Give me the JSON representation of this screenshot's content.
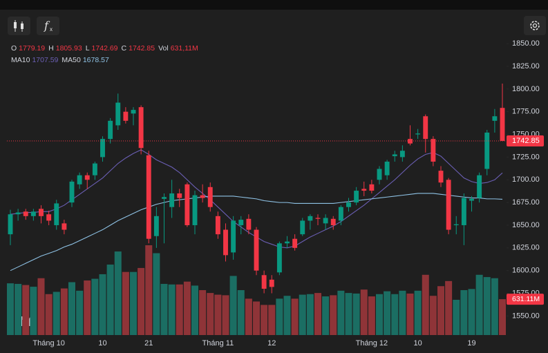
{
  "chart_data": {
    "type": "candlestick",
    "up_color": "#089981",
    "down_color": "#f23645",
    "volume_up_color": "#1b6e63",
    "volume_down_color": "#8f3438",
    "categories": [
      null,
      null,
      null,
      null,
      null,
      "Tháng 10",
      null,
      null,
      null,
      null,
      null,
      null,
      "10",
      null,
      null,
      null,
      null,
      null,
      "21",
      null,
      null,
      null,
      null,
      null,
      null,
      null,
      null,
      "Tháng 11",
      null,
      null,
      null,
      null,
      null,
      null,
      "12",
      null,
      null,
      null,
      null,
      null,
      null,
      null,
      null,
      null,
      null,
      null,
      null,
      "Tháng 12",
      null,
      null,
      null,
      null,
      null,
      "10",
      null,
      null,
      null,
      null,
      null,
      null,
      "19",
      null,
      null,
      null,
      null
    ],
    "open": [
      1640,
      1662,
      1665,
      1660,
      1668,
      1662,
      1650,
      1652,
      1675,
      1695,
      1705,
      1705,
      1725,
      1745,
      1760,
      1775,
      1773,
      1780,
      1727,
      1638,
      1679,
      1670,
      1685,
      1695,
      1650,
      1683,
      1692,
      1660,
      1645,
      1620,
      1650,
      1657,
      1645,
      1595,
      1590,
      1598,
      1630,
      1635,
      1640,
      1655,
      1658,
      1652,
      1657,
      1655,
      1670,
      1675,
      1690,
      1695,
      1700,
      1705,
      1726,
      1725,
      1745,
      1750,
      1770,
      1745,
      1710,
      1700,
      1650,
      1650,
      1677,
      1680,
      1712,
      1765,
      1779.19
    ],
    "high": [
      1667,
      1668,
      1668,
      1668,
      1672,
      1666,
      1678,
      1656,
      1700,
      1708,
      1708,
      1720,
      1748,
      1768,
      1795,
      1780,
      1780,
      1782,
      1732,
      1670,
      1685,
      1700,
      1690,
      1697,
      1688,
      1695,
      1697,
      1665,
      1652,
      1660,
      1660,
      1662,
      1648,
      1600,
      1595,
      1632,
      1638,
      1640,
      1658,
      1662,
      1662,
      1662,
      1660,
      1672,
      1680,
      1692,
      1698,
      1700,
      1715,
      1722,
      1732,
      1738,
      1760,
      1756,
      1772,
      1748,
      1715,
      1702,
      1660,
      1685,
      1682,
      1708,
      1755,
      1778,
      1805.93
    ],
    "low": [
      1628,
      1655,
      1656,
      1655,
      1652,
      1650,
      1645,
      1640,
      1670,
      1690,
      1690,
      1700,
      1720,
      1740,
      1755,
      1762,
      1760,
      1728,
      1630,
      1625,
      1630,
      1658,
      1670,
      1648,
      1640,
      1675,
      1665,
      1635,
      1610,
      1612,
      1640,
      1640,
      1595,
      1575,
      1575,
      1595,
      1625,
      1622,
      1638,
      1645,
      1650,
      1645,
      1645,
      1650,
      1665,
      1672,
      1682,
      1685,
      1695,
      1700,
      1720,
      1720,
      1738,
      1745,
      1730,
      1715,
      1692,
      1640,
      1640,
      1628,
      1665,
      1675,
      1705,
      1752,
      1742.69
    ],
    "close": [
      1662,
      1664,
      1660,
      1665,
      1660,
      1655,
      1674,
      1645,
      1698,
      1705,
      1700,
      1718,
      1745,
      1765,
      1785,
      1765,
      1777,
      1735,
      1635,
      1660,
      1681,
      1685,
      1680,
      1650,
      1683,
      1680,
      1670,
      1640,
      1617,
      1655,
      1656,
      1645,
      1600,
      1580,
      1582,
      1630,
      1632,
      1625,
      1655,
      1660,
      1657,
      1658,
      1650,
      1670,
      1675,
      1688,
      1688,
      1688,
      1712,
      1720,
      1728,
      1732,
      1740,
      1751,
      1745,
      1720,
      1697,
      1645,
      1651,
      1680,
      1679,
      1705,
      1752,
      1770,
      1742.85
    ],
    "volume": {
      "values": [
        910,
        900,
        880,
        850,
        1000,
        720,
        760,
        820,
        930,
        780,
        960,
        990,
        1070,
        1240,
        1470,
        1110,
        1110,
        1180,
        1580,
        1440,
        900,
        890,
        890,
        940,
        870,
        790,
        740,
        710,
        700,
        1040,
        790,
        640,
        590,
        530,
        530,
        640,
        690,
        640,
        710,
        720,
        740,
        680,
        700,
        780,
        740,
        730,
        800,
        680,
        720,
        770,
        720,
        780,
        730,
        780,
        1060,
        690,
        860,
        950,
        620,
        790,
        810,
        1060,
        1020,
        1000,
        631.11
      ],
      "value_labels": [
        null,
        null,
        null,
        null,
        null,
        null,
        null,
        null,
        null,
        null,
        null,
        null,
        null,
        null,
        null,
        null,
        null,
        null,
        null,
        null,
        null,
        null,
        null,
        null,
        null,
        null,
        null,
        null,
        null,
        null,
        null,
        null,
        null,
        null,
        null,
        null,
        null,
        null,
        null,
        null,
        null,
        null,
        null,
        null,
        null,
        null,
        null,
        null,
        null,
        null,
        null,
        null,
        null,
        null,
        null,
        null,
        null,
        null,
        null,
        null,
        null,
        null,
        null,
        null,
        "631.11M"
      ]
    },
    "series": [
      {
        "name": "MA10",
        "color": "#6b5fb5",
        "values": [
          1662,
          1663,
          1664,
          1664,
          1665,
          1665,
          1668,
          1672,
          1678,
          1684,
          1690,
          1696,
          1702,
          1710,
          1718,
          1724,
          1729,
          1733,
          1728,
          1722,
          1718,
          1714,
          1708,
          1700,
          1692,
          1685,
          1678,
          1670,
          1662,
          1654,
          1648,
          1642,
          1637,
          1632,
          1629,
          1626,
          1625,
          1627,
          1632,
          1637,
          1641,
          1645,
          1649,
          1654,
          1660,
          1666,
          1672,
          1679,
          1686,
          1693,
          1700,
          1708,
          1716,
          1723,
          1728,
          1730,
          1726,
          1718,
          1710,
          1702,
          1698,
          1696,
          1697,
          1700,
          1707.59
        ]
      },
      {
        "name": "MA50",
        "color": "#8fc3e6",
        "values": [
          1600,
          1604,
          1608,
          1612,
          1616,
          1619,
          1622,
          1626,
          1629,
          1633,
          1637,
          1641,
          1645,
          1650,
          1655,
          1659,
          1663,
          1667,
          1670,
          1673,
          1675,
          1677,
          1678,
          1679,
          1680,
          1681,
          1682,
          1682,
          1682,
          1682,
          1681,
          1680,
          1679,
          1677,
          1676,
          1675,
          1675,
          1674,
          1674,
          1674,
          1674,
          1674,
          1674,
          1675,
          1676,
          1677,
          1678,
          1679,
          1680,
          1681,
          1682,
          1683,
          1684,
          1685,
          1685,
          1685,
          1684,
          1683,
          1682,
          1681,
          1680,
          1680,
          1679,
          1679,
          1678.57
        ]
      }
    ],
    "legend": {
      "ohlc": [
        "O",
        "H",
        "L",
        "C"
      ],
      "volume_label": "Vol",
      "volume_value": "631,11M"
    },
    "ylim": [
      1529,
      1860
    ],
    "yticks": [
      {
        "value": 1550,
        "label": "1550.00"
      },
      {
        "value": 1575,
        "label": "1575.00"
      },
      {
        "value": 1600,
        "label": "1600.00"
      },
      {
        "value": 1625,
        "label": "1625.00"
      },
      {
        "value": 1650,
        "label": "1650.00"
      },
      {
        "value": 1675,
        "label": "1675.00"
      },
      {
        "value": 1700,
        "label": "1700.00"
      },
      {
        "value": 1725,
        "label": "1725.00"
      },
      {
        "value": 1750,
        "label": "1750.00"
      },
      {
        "value": 1775,
        "label": "1775.00"
      },
      {
        "value": 1800,
        "label": "1800.00"
      },
      {
        "value": 1825,
        "label": "1825.00"
      },
      {
        "value": 1850,
        "label": "1850.00"
      }
    ],
    "grid": false
  }
}
